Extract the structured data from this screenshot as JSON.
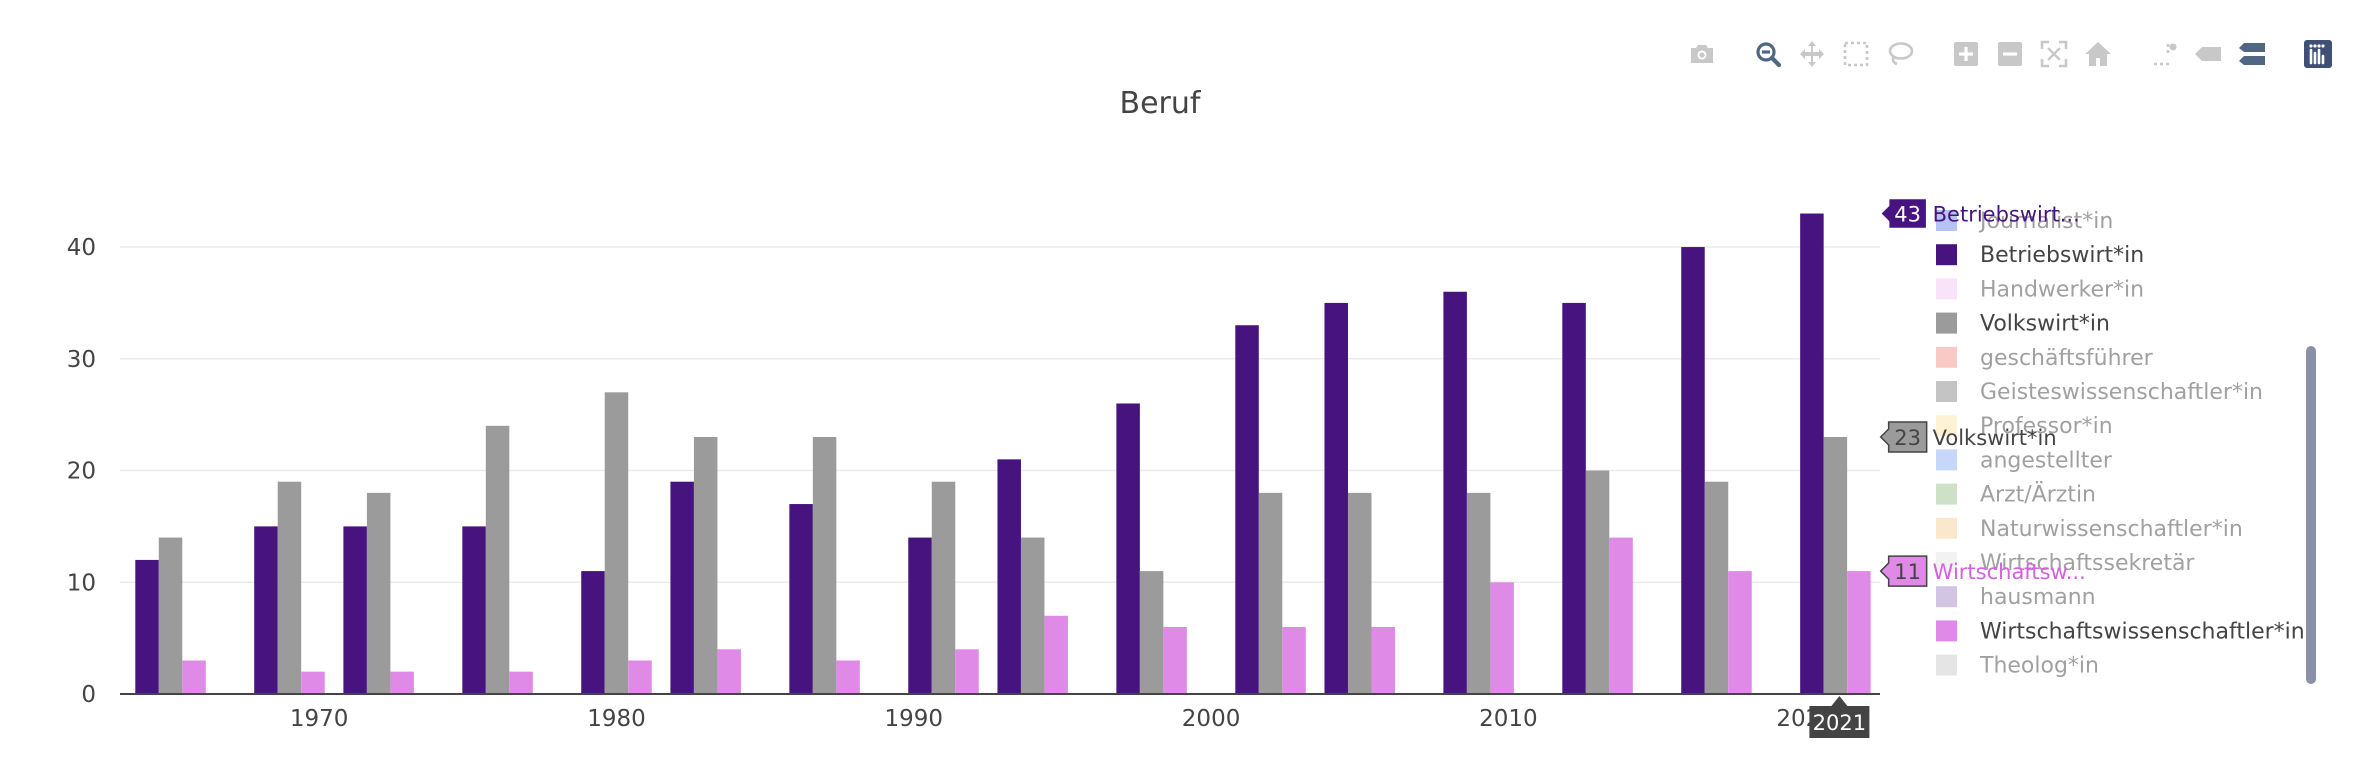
{
  "modebar": {
    "buttons": [
      {
        "name": "camera-icon",
        "active": false
      },
      {
        "name": "zoom-icon",
        "active": true
      },
      {
        "name": "pan-icon",
        "active": false
      },
      {
        "name": "box-select-icon",
        "active": false
      },
      {
        "name": "lasso-select-icon",
        "active": false
      },
      {
        "name": "zoom-in-icon",
        "active": false
      },
      {
        "name": "zoom-out-icon",
        "active": false
      },
      {
        "name": "autoscale-icon",
        "active": false
      },
      {
        "name": "reset-axes-icon",
        "active": false
      },
      {
        "name": "spike-lines-icon",
        "active": false
      },
      {
        "name": "hover-closest-icon",
        "active": false
      },
      {
        "name": "hover-compare-icon",
        "active": true
      },
      {
        "name": "plotly-logo-icon",
        "active": false
      }
    ]
  },
  "chart_data": {
    "type": "bar",
    "title": "Beruf",
    "xlabel": "",
    "ylabel": "",
    "ylim": [
      0,
      46
    ],
    "xlim": [
      1963.3,
      2022.5
    ],
    "x_ticks": [
      "1970",
      "1980",
      "1990",
      "2000",
      "2010",
      "2020"
    ],
    "x_tick_values": [
      1970,
      1980,
      1990,
      2000,
      2010,
      2020
    ],
    "y_ticks": [
      "0",
      "10",
      "20",
      "30",
      "40"
    ],
    "y_tick_values": [
      0,
      10,
      20,
      30,
      40
    ],
    "grid": true,
    "x": [
      1965,
      1969,
      1972,
      1976,
      1980,
      1983,
      1987,
      1991,
      1994,
      1998,
      2002,
      2005,
      2009,
      2013,
      2017,
      2021
    ],
    "series": [
      {
        "name": "Betriebswirt*in",
        "color": "#46137f",
        "values": [
          12,
          15,
          15,
          15,
          11,
          19,
          17,
          14,
          21,
          26,
          33,
          35,
          36,
          35,
          40,
          43
        ]
      },
      {
        "name": "Volkswirt*in",
        "color": "#9b9b9b",
        "values": [
          14,
          19,
          18,
          24,
          27,
          23,
          23,
          19,
          14,
          11,
          18,
          18,
          18,
          20,
          19,
          23
        ]
      },
      {
        "name": "Wirtschaftswissenschaftler*in",
        "color": "#e08ae8",
        "values": [
          3,
          2,
          2,
          2,
          3,
          4,
          3,
          4,
          7,
          6,
          6,
          6,
          10,
          14,
          11,
          11
        ]
      }
    ],
    "legend": {
      "position": "right",
      "items": [
        {
          "label": "Journalist*in",
          "color": "#6f86e8",
          "active": false
        },
        {
          "label": "Betriebswirt*in",
          "color": "#46137f",
          "active": true
        },
        {
          "label": "Handwerker*in",
          "color": "#f3c8f2",
          "active": false
        },
        {
          "label": "Volkswirt*in",
          "color": "#9b9b9b",
          "active": true
        },
        {
          "label": "geschäftsführer",
          "color": "#f4958c",
          "active": false
        },
        {
          "label": "Geisteswissenschaftler*in",
          "color": "#8a8a8a",
          "active": false
        },
        {
          "label": "Professor*in",
          "color": "#fde7a8",
          "active": false
        },
        {
          "label": "angestellter",
          "color": "#8fb0f6",
          "active": false
        },
        {
          "label": "Arzt/Ärztin",
          "color": "#9cc58f",
          "active": false
        },
        {
          "label": "Naturwissenschaftler*in",
          "color": "#f9d09a",
          "active": false
        },
        {
          "label": "Wirtschaftssekretär",
          "color": "#e6e6e6",
          "active": false
        },
        {
          "label": "hausmann",
          "color": "#a48cc9",
          "active": false
        },
        {
          "label": "Wirtschaftswissenschaftler*in",
          "color": "#e08ae8",
          "active": true
        },
        {
          "label": "Theolog*in",
          "color": "#cccccc",
          "active": false
        }
      ]
    },
    "hover": {
      "x_label": "2021",
      "labels": [
        {
          "value": "43",
          "name": "Betriebswirt...",
          "series": 0
        },
        {
          "value": "23",
          "name": "Volkswirt*in",
          "series": 1
        },
        {
          "value": "11",
          "name": "Wirtschaftsw...",
          "series": 2
        }
      ]
    }
  }
}
